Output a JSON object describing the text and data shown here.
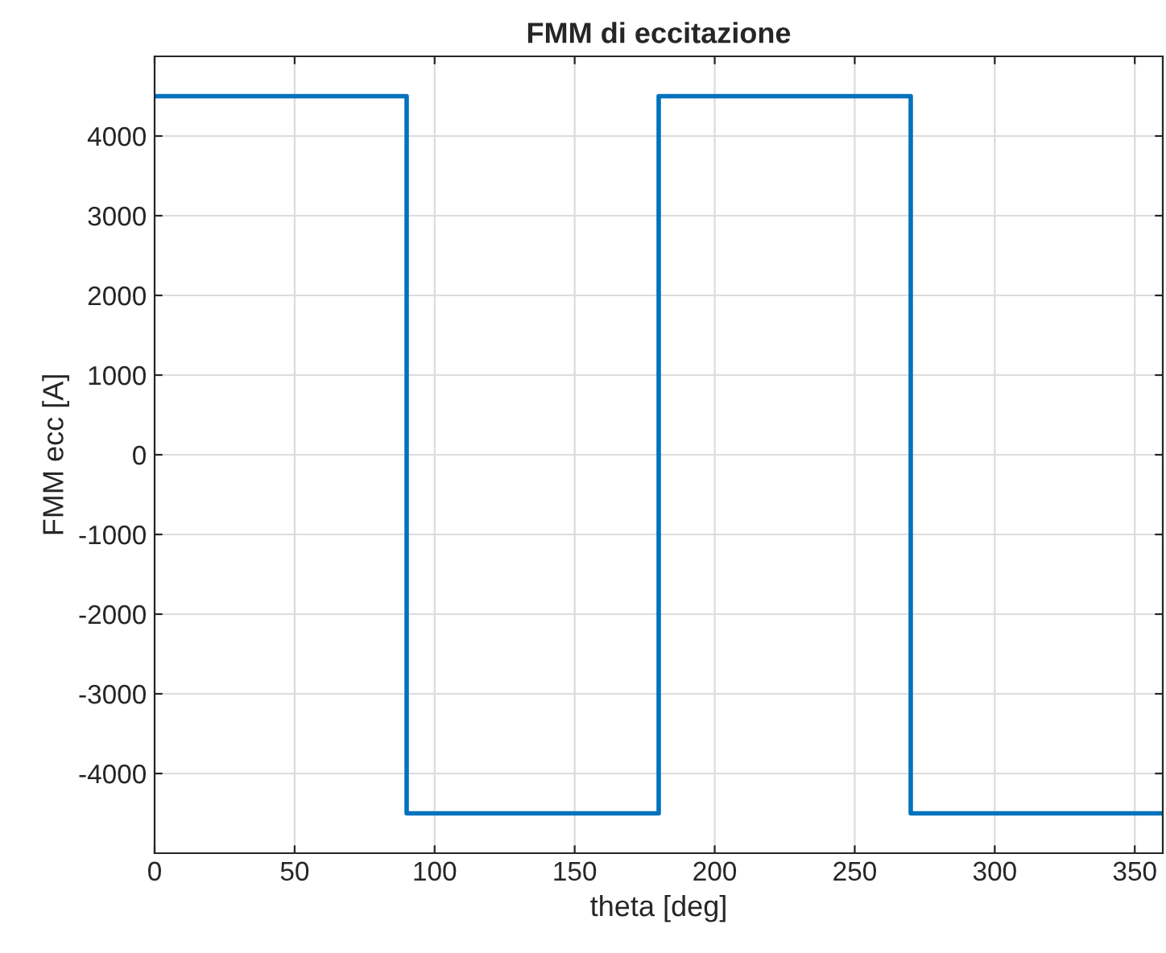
{
  "chart_data": {
    "type": "line",
    "title": "FMM di eccitazione",
    "xlabel": "theta [deg]",
    "ylabel": "FMM ecc [A]",
    "series": [
      {
        "color": "#0072bd",
        "x": [
          0,
          90,
          90,
          180,
          180,
          270,
          270,
          360
        ],
        "values": [
          4500,
          4500,
          -4500,
          -4500,
          4500,
          4500,
          -4500,
          -4500
        ]
      }
    ],
    "xlim": [
      0,
      360
    ],
    "xticks": [
      0,
      50,
      100,
      150,
      200,
      250,
      300,
      350
    ],
    "ylim": [
      -5000,
      5000
    ],
    "yticks": [
      -4000,
      -3000,
      -2000,
      -1000,
      0,
      1000,
      2000,
      3000,
      4000
    ],
    "grid": true
  }
}
